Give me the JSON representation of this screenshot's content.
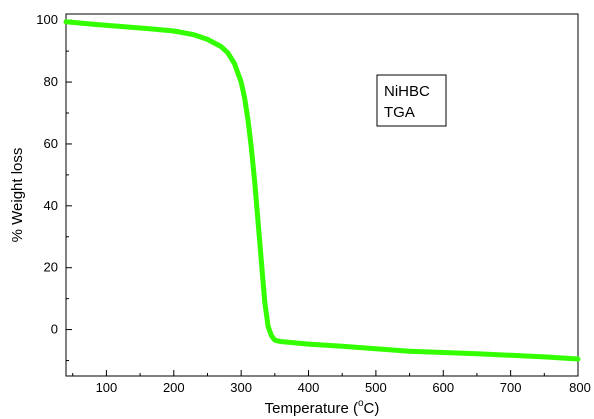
{
  "chart_data": {
    "type": "line",
    "xlabel": "Temperature (",
    "xlabel_unit": "C",
    "xlabel_unit_prefix": "o",
    "xlabel_close": ")",
    "ylabel": "% Weight loss",
    "xlim": [
      40,
      800
    ],
    "ylim": [
      -15,
      102
    ],
    "x_ticks": [
      100,
      200,
      300,
      400,
      500,
      600,
      700,
      800
    ],
    "y_ticks": [
      0,
      20,
      40,
      60,
      80,
      100
    ],
    "grid": false,
    "annotation": {
      "lines": [
        "NiHBC",
        "TGA"
      ]
    },
    "series": [
      {
        "color": "#33ff00",
        "x": [
          40,
          80,
          120,
          160,
          200,
          230,
          250,
          270,
          280,
          290,
          300,
          305,
          310,
          315,
          320,
          325,
          330,
          335,
          340,
          345,
          350,
          355,
          360,
          380,
          400,
          450,
          500,
          550,
          600,
          650,
          700,
          750,
          800
        ],
        "y": [
          99.5,
          98.7,
          98.0,
          97.3,
          96.5,
          95.3,
          93.8,
          91.5,
          89.5,
          86.0,
          80.0,
          75.0,
          68.0,
          59.0,
          48.0,
          35.0,
          22.0,
          9.0,
          1.0,
          -2.0,
          -3.4,
          -3.7,
          -3.9,
          -4.3,
          -4.7,
          -5.4,
          -6.2,
          -7.0,
          -7.4,
          -7.8,
          -8.3,
          -8.8,
          -9.5
        ]
      }
    ]
  }
}
